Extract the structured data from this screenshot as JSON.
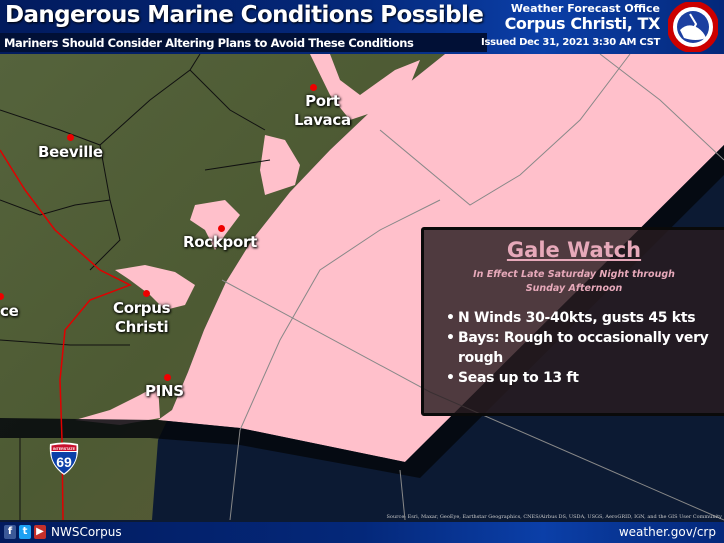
{
  "header": {
    "title": "Dangerous Marine Conditions Possible",
    "subtitle": "Mariners Should Consider Altering Plans to Avoid These Conditions",
    "office_label": "Weather Forecast Office",
    "office": "Corpus Christi, TX",
    "issued": "Issued Dec 31, 2021 3:30 AM CST",
    "logo": "National Weather Service"
  },
  "map": {
    "colors": {
      "watch_area": "#ffc0cb",
      "land": "#4a5a34",
      "ocean": "#0c1a33",
      "city_dot": "#e00000",
      "highway": "#e00000"
    },
    "cities": [
      {
        "name_line1": "Port",
        "name_line2": "Lavaca"
      },
      {
        "name_line1": "Beeville"
      },
      {
        "name_line1": "Rockport"
      },
      {
        "name_line1": "Corpus",
        "name_line2": "Christi"
      },
      {
        "name_line1": "PINS"
      },
      {
        "name_line1": "ce"
      }
    ],
    "interstate": {
      "label": "INTERSTATE",
      "number": "69"
    },
    "source": "Source: Esri, Maxar, GeoEye, Earthstar Geographics, CNES/Airbus DS, USDA, USGS, AeroGRID, IGN, and the GIS User Community"
  },
  "alert": {
    "title": "Gale Watch",
    "effective_line1": "In Effect Late Saturday Night  through",
    "effective_line2": "Sunday Afternoon",
    "bullets": [
      "N Winds 30-40kts, gusts 45 kts",
      "Bays: Rough to occasionally very rough",
      "Seas up to 13 ft"
    ]
  },
  "footer": {
    "social_icons": [
      "facebook-icon",
      "twitter-icon",
      "youtube-icon"
    ],
    "handle": "NWSCorpus",
    "url": "weather.gov/crp"
  }
}
